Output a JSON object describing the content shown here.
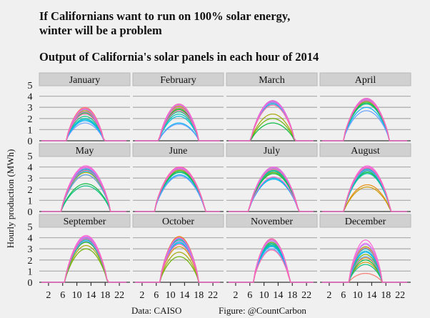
{
  "chart_data": {
    "type": "line",
    "title": "If Californians want to run on 100% solar energy,",
    "title_line2": "winter will be a problem",
    "subtitle": "Output of California's solar panels in each hour of 2014",
    "xlabel": "",
    "ylabel": "Hourly production (MWh)",
    "xlim": [
      0,
      24
    ],
    "ylim": [
      0,
      5
    ],
    "x_ticks": [
      2,
      6,
      10,
      14,
      18,
      22
    ],
    "y_ticks": [
      0,
      1,
      2,
      3,
      4,
      5
    ],
    "grid": true,
    "caption_left": "Data: CAISO",
    "caption_right": "Figure: @CountCarbon",
    "palette": [
      "#f8766d",
      "#e58700",
      "#c99800",
      "#a3a500",
      "#6bb100",
      "#00ba38",
      "#00bf7d",
      "#00c0af",
      "#00bcd8",
      "#00b0f6",
      "#619cff",
      "#b983ff",
      "#e76bf3",
      "#fd61d1",
      "#ff67a4"
    ],
    "panels": [
      {
        "month": "January",
        "sunrise": 7.0,
        "sunset": 17.6,
        "peaks": [
          3.0,
          2.9,
          2.8,
          2.7,
          2.6,
          2.5,
          2.2,
          2.0,
          1.9,
          1.8,
          1.6,
          2.8,
          2.6,
          2.9,
          2.4
        ]
      },
      {
        "month": "February",
        "sunrise": 6.8,
        "sunset": 18.0,
        "peaks": [
          3.3,
          3.2,
          3.1,
          3.0,
          2.9,
          2.8,
          2.6,
          2.4,
          2.2,
          1.6,
          1.5,
          3.2,
          3.0,
          3.3,
          2.7
        ]
      },
      {
        "month": "March",
        "sunrise": 6.3,
        "sunset": 18.6,
        "peaks": [
          3.6,
          3.5,
          3.4,
          2.4,
          2.0,
          1.6,
          3.5,
          3.6,
          3.3,
          3.5,
          3.4,
          3.6,
          3.5,
          3.6,
          3.2
        ]
      },
      {
        "month": "April",
        "sunrise": 6.0,
        "sunset": 19.0,
        "peaks": [
          3.8,
          3.8,
          3.7,
          3.6,
          3.5,
          3.4,
          3.3,
          3.7,
          3.6,
          3.0,
          2.7,
          3.8,
          3.7,
          3.8,
          3.6
        ]
      },
      {
        "month": "May",
        "sunrise": 5.6,
        "sunset": 19.5,
        "peaks": [
          4.0,
          3.9,
          3.8,
          3.5,
          3.3,
          2.5,
          2.3,
          3.7,
          3.6,
          3.8,
          3.3,
          3.9,
          4.0,
          4.1,
          3.7
        ]
      },
      {
        "month": "June",
        "sunrise": 5.5,
        "sunset": 19.8,
        "peaks": [
          4.0,
          4.0,
          3.9,
          3.8,
          3.7,
          3.6,
          3.5,
          3.9,
          3.8,
          3.3,
          3.2,
          3.9,
          3.9,
          4.0,
          3.8
        ]
      },
      {
        "month": "July",
        "sunrise": 5.7,
        "sunset": 19.7,
        "peaks": [
          4.0,
          3.9,
          3.8,
          3.6,
          3.5,
          3.4,
          3.7,
          3.6,
          3.0,
          2.9,
          3.8,
          3.9,
          4.0,
          3.1,
          3.8
        ]
      },
      {
        "month": "August",
        "sunrise": 6.2,
        "sunset": 19.3,
        "peaks": [
          4.0,
          2.4,
          2.2,
          3.8,
          3.7,
          3.5,
          3.6,
          3.4,
          3.9,
          3.8,
          3.7,
          3.9,
          4.0,
          4.1,
          3.9
        ]
      },
      {
        "month": "September",
        "sunrise": 6.6,
        "sunset": 18.6,
        "peaks": [
          4.1,
          4.0,
          3.6,
          3.3,
          3.0,
          3.6,
          3.9,
          3.8,
          4.0,
          3.9,
          3.7,
          4.0,
          4.1,
          4.2,
          3.9
        ]
      },
      {
        "month": "October",
        "sunrise": 7.0,
        "sunset": 18.0,
        "peaks": [
          4.1,
          4.1,
          3.2,
          2.7,
          2.3,
          3.9,
          3.8,
          4.0,
          3.6,
          3.5,
          3.9,
          3.7,
          4.0,
          4.0,
          3.4
        ]
      },
      {
        "month": "November",
        "sunrise": 7.0,
        "sunset": 17.3,
        "peaks": [
          3.9,
          3.5,
          3.9,
          3.8,
          3.6,
          3.3,
          3.4,
          3.5,
          3.3,
          3.2,
          3.0,
          3.7,
          3.8,
          3.9,
          2.9
        ]
      },
      {
        "month": "December",
        "sunrise": 7.5,
        "sunset": 17.0,
        "peaks": [
          0.8,
          2.2,
          1.8,
          3.2,
          2.5,
          2.0,
          1.6,
          3.0,
          2.8,
          2.7,
          2.3,
          3.4,
          3.5,
          3.8,
          3.1
        ]
      }
    ]
  }
}
